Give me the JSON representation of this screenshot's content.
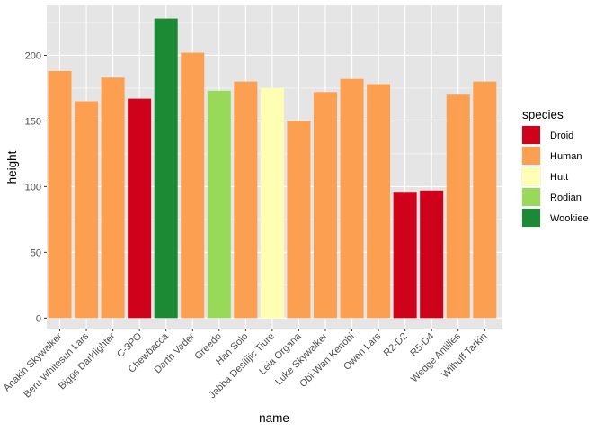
{
  "colors": {
    "panel": "#e5e5e5",
    "grid_major": "#ffffff",
    "tick": "#333333",
    "species": {
      "Droid": "#d0021b",
      "Human": "#fc9f50",
      "Hutt": "#feffb3",
      "Rodian": "#99d95a",
      "Wookiee": "#1c8a35"
    }
  },
  "chart_data": {
    "type": "bar",
    "xlabel": "name",
    "ylabel": "height",
    "ylim": [
      -8,
      238
    ],
    "yticks": [
      0,
      50,
      100,
      150,
      200
    ],
    "grid": true,
    "legend": {
      "title": "species",
      "placement": "right",
      "entries": [
        "Droid",
        "Human",
        "Hutt",
        "Rodian",
        "Wookiee"
      ]
    },
    "categories": [
      "Anakin Skywalker",
      "Beru Whitesun Lars",
      "Biggs Darklighter",
      "C-3PO",
      "Chewbacca",
      "Darth Vader",
      "Greedo",
      "Han Solo",
      "Jabba Desilijic Tiure",
      "Leia Organa",
      "Luke Skywalker",
      "Obi-Wan Kenobi",
      "Owen Lars",
      "R2-D2",
      "R5-D4",
      "Wedge Antilles",
      "Wilhuff Tarkin"
    ],
    "values": [
      188,
      165,
      183,
      167,
      228,
      202,
      173,
      180,
      175,
      150,
      172,
      182,
      178,
      96,
      97,
      170,
      180
    ],
    "species": [
      "Human",
      "Human",
      "Human",
      "Droid",
      "Wookiee",
      "Human",
      "Rodian",
      "Human",
      "Hutt",
      "Human",
      "Human",
      "Human",
      "Human",
      "Droid",
      "Droid",
      "Human",
      "Human"
    ]
  }
}
